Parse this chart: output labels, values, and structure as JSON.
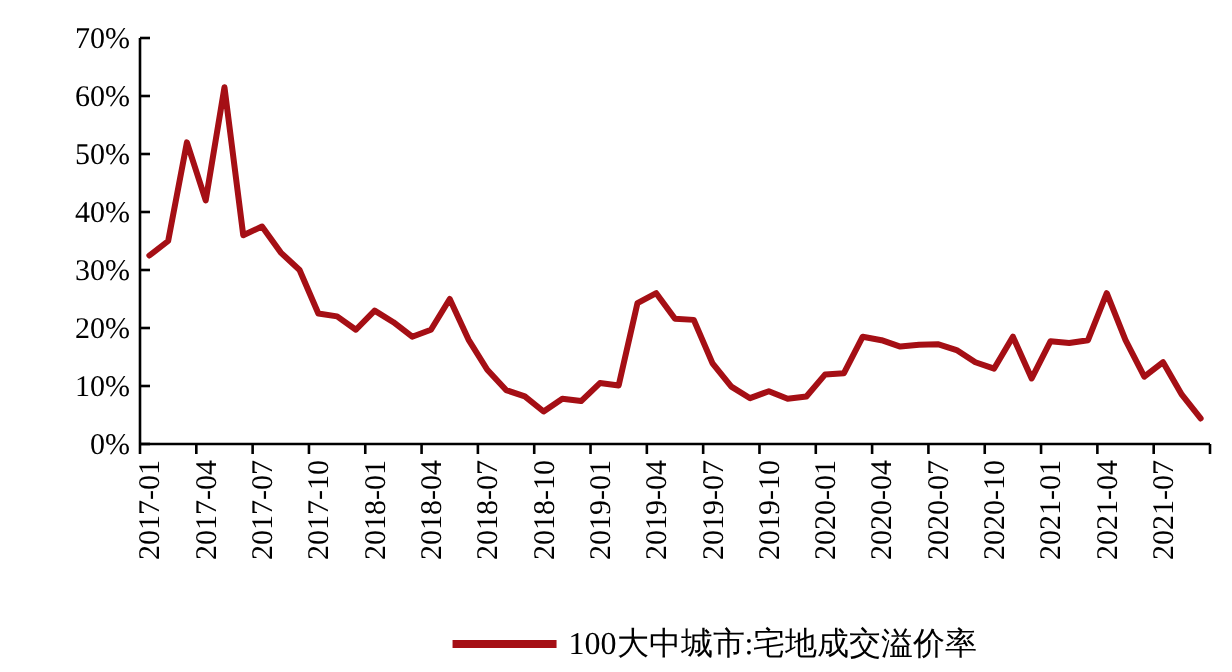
{
  "chart_data": {
    "type": "line",
    "categories": [
      "2017-01",
      null,
      null,
      "2017-04",
      null,
      null,
      "2017-07",
      null,
      null,
      "2017-10",
      null,
      null,
      "2018-01",
      null,
      null,
      "2018-04",
      null,
      null,
      "2018-07",
      null,
      null,
      "2018-10",
      null,
      null,
      "2019-01",
      null,
      null,
      "2019-04",
      null,
      null,
      "2019-07",
      null,
      null,
      "2019-10",
      null,
      null,
      "2020-01",
      null,
      null,
      "2020-04",
      null,
      null,
      "2020-07",
      null,
      null,
      "2020-10",
      null,
      null,
      "2021-01",
      null,
      null,
      "2021-04",
      null,
      null,
      "2021-07",
      null,
      null
    ],
    "series": [
      {
        "name": "100大中城市:宅地成交溢价率",
        "color": "#a50f15",
        "values": [
          32.5,
          35,
          52,
          42,
          61.5,
          36,
          37.5,
          33,
          30,
          22.5,
          22,
          19.7,
          23,
          21,
          18.5,
          19.7,
          25,
          18,
          12.8,
          9.3,
          8.2,
          5.6,
          7.8,
          7.4,
          10.5,
          10.1,
          24.3,
          26,
          21.6,
          21.4,
          13.9,
          9.9,
          7.9,
          9.1,
          7.8,
          8.2,
          12,
          12.2,
          18.5,
          17.9,
          16.8,
          17.1,
          17.2,
          16.2,
          14.1,
          13,
          18.5,
          11.3,
          17.7,
          17.4,
          17.9,
          26,
          17.9,
          11.6,
          14.1,
          8.5,
          4.4
        ]
      }
    ],
    "ylim": [
      0,
      70
    ],
    "yticks": [
      {
        "value": 0,
        "label": "0%"
      },
      {
        "value": 10,
        "label": "10%"
      },
      {
        "value": 20,
        "label": "20%"
      },
      {
        "value": 30,
        "label": "30%"
      },
      {
        "value": 40,
        "label": "40%"
      },
      {
        "value": 50,
        "label": "50%"
      },
      {
        "value": 60,
        "label": "60%"
      },
      {
        "value": 70,
        "label": "70%"
      }
    ],
    "legend": "bottom"
  }
}
